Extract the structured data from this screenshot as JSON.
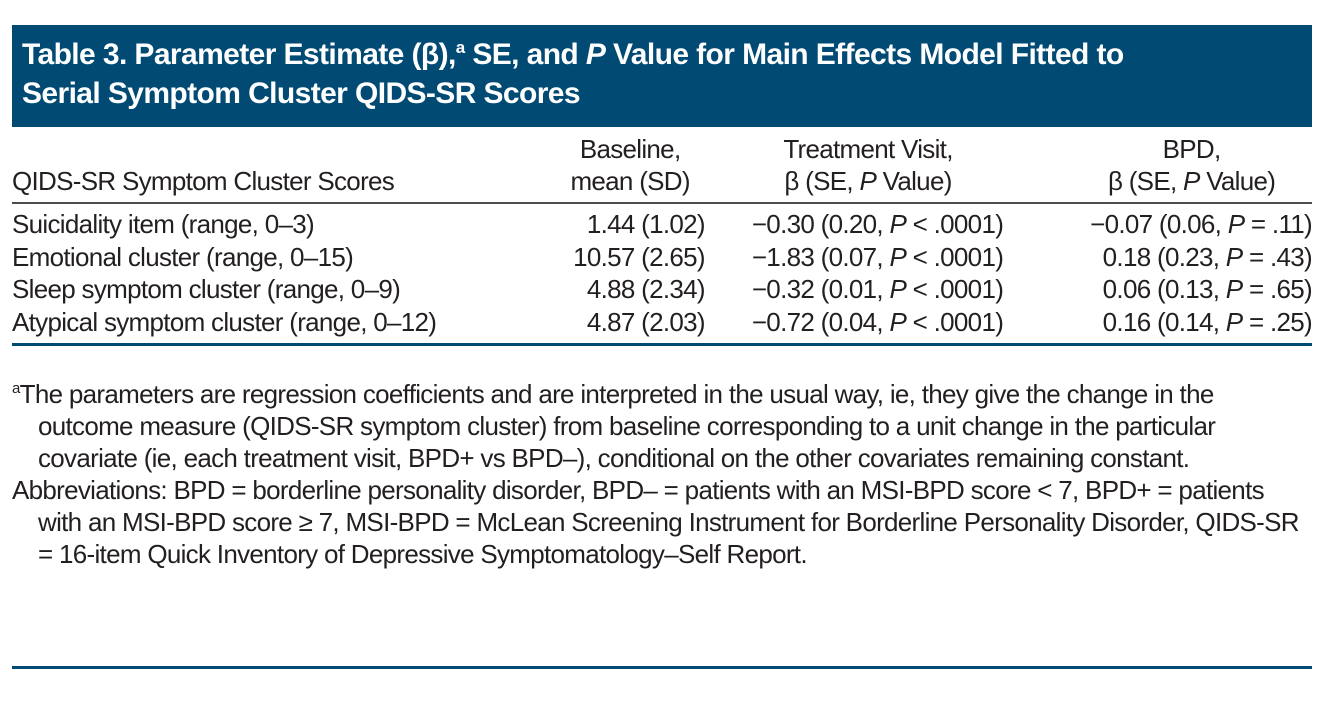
{
  "title": {
    "part1": "Table 3. Parameter Estimate (β),",
    "sup": "a",
    "part2": " SE, and ",
    "italic_p": "P",
    "part3": " Value for Main Effects Model Fitted to",
    "line2": "Serial Symptom Cluster QIDS-SR Scores"
  },
  "columns": {
    "col0": "QIDS-SR Symptom Cluster Scores",
    "col1_line1": "Baseline,",
    "col1_line2": "mean (SD)",
    "col2_line1": "Treatment Visit,",
    "col2_line2_pre": "β (SE, ",
    "col2_line2_p": "P",
    "col2_line2_post": " Value)",
    "col3_line1": "BPD,",
    "col3_line2_pre": "β (SE, ",
    "col3_line2_p": "P",
    "col3_line2_post": " Value)"
  },
  "rows": [
    {
      "label": "Suicidality item (range, 0–3)",
      "baseline": "1.44 (1.02)",
      "tv_pre": "−0.30 (0.20, ",
      "tv_p": "P",
      "tv_post": " < .0001)",
      "bpd_pre": "−0.07 (0.06, ",
      "bpd_p": "P",
      "bpd_post": " = .11)"
    },
    {
      "label": "Emotional cluster (range, 0–15)",
      "baseline": "10.57 (2.65)",
      "tv_pre": "−1.83 (0.07, ",
      "tv_p": "P",
      "tv_post": " < .0001)",
      "bpd_pre": "0.18 (0.23, ",
      "bpd_p": "P",
      "bpd_post": " = .43)"
    },
    {
      "label": "Sleep symptom cluster (range, 0–9)",
      "baseline": "4.88 (2.34)",
      "tv_pre": "−0.32 (0.01, ",
      "tv_p": "P",
      "tv_post": " < .0001)",
      "bpd_pre": "0.06 (0.13, ",
      "bpd_p": "P",
      "bpd_post": " = .65)"
    },
    {
      "label": "Atypical symptom cluster (range, 0–12)",
      "baseline": "4.87 (2.03)",
      "tv_pre": "−0.72 (0.04, ",
      "tv_p": "P",
      "tv_post": " < .0001)",
      "bpd_pre": "0.16 (0.14, ",
      "bpd_p": "P",
      "bpd_post": " = .25)"
    }
  ],
  "footnotes": {
    "a_marker": "a",
    "a_text": "The parameters are regression coefficients and are interpreted in the usual way, ie, they give the change in the outcome measure (QIDS-SR symptom cluster) from baseline corresponding to a unit change in the particular covariate (ie, each treatment visit, BPD+ vs BPD–), conditional on the other covariates remaining constant.",
    "abbreviations": "Abbreviations: BPD = borderline personality disorder, BPD– = patients with an MSI-BPD score < 7, BPD+ = patients with an MSI-BPD score ≥ 7, MSI-BPD = McLean Screening Instrument for Borderline Personality Disorder, QIDS-SR = 16-item Quick Inventory of Depressive Symptomatology–Self Report."
  },
  "colors": {
    "title_bg": "#004a74",
    "rule": "#004a74",
    "text": "#231f20"
  }
}
